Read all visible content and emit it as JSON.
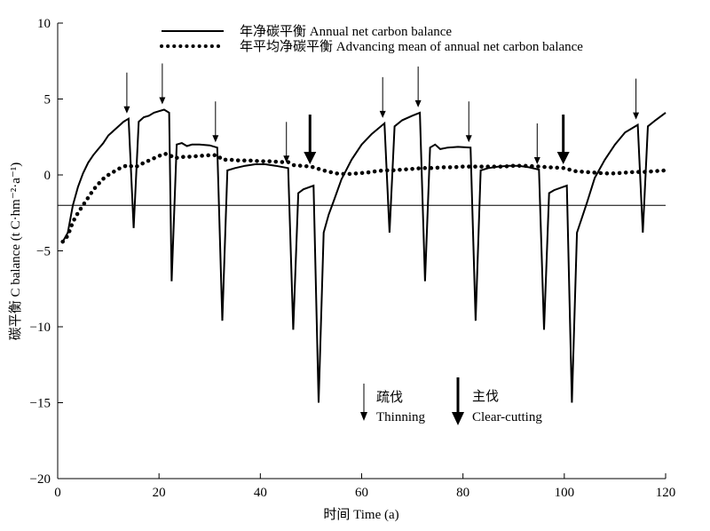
{
  "chart_data": {
    "type": "line",
    "xlabel": "时间 Time (a)",
    "ylabel": "碳平衡 C balance (t C·hm⁻²·a⁻¹)",
    "xlim": [
      0,
      120
    ],
    "ylim": [
      -20,
      10
    ],
    "x_ticks": [
      0,
      20,
      40,
      60,
      80,
      100,
      120
    ],
    "y_ticks": [
      10,
      5,
      0,
      -5,
      -10,
      -15,
      -20
    ],
    "grid": false,
    "reference_line": -2,
    "legend": {
      "position": "top",
      "entries": [
        "年净碳平衡 Annual net carbon balance",
        "年平均净碳平衡 Advancing mean of annual net carbon balance"
      ]
    },
    "annotations": {
      "thinning": {
        "zh": "疏伐",
        "en": "Thinning"
      },
      "clear_cutting": {
        "zh": "主伐",
        "en": "Clear-cutting"
      }
    },
    "thinning_years": [
      14,
      21,
      31.5,
      45.5,
      64.5,
      71.5,
      81.5,
      95,
      114.5
    ],
    "clear_cutting_years": [
      50.5,
      100.5
    ],
    "series": [
      {
        "name": "年净碳平衡 Annual net carbon balance",
        "style": "solid",
        "points": [
          [
            1,
            -4.4
          ],
          [
            2,
            -3.8
          ],
          [
            3,
            -2
          ],
          [
            4,
            -0.8
          ],
          [
            5,
            0.1
          ],
          [
            6,
            0.8
          ],
          [
            7,
            1.3
          ],
          [
            8,
            1.7
          ],
          [
            9,
            2.1
          ],
          [
            10,
            2.6
          ],
          [
            11,
            2.9
          ],
          [
            12,
            3.2
          ],
          [
            13,
            3.5
          ],
          [
            14,
            3.7
          ],
          [
            15,
            -3.5
          ],
          [
            16,
            3.5
          ],
          [
            17,
            3.8
          ],
          [
            18,
            3.9
          ],
          [
            19,
            4.1
          ],
          [
            20,
            4.2
          ],
          [
            21,
            4.3
          ],
          [
            22,
            4.1
          ],
          [
            22.5,
            -7
          ],
          [
            23.5,
            2
          ],
          [
            24.5,
            2.1
          ],
          [
            25.5,
            1.9
          ],
          [
            26.5,
            2
          ],
          [
            28,
            2
          ],
          [
            30,
            1.95
          ],
          [
            31.5,
            1.8
          ],
          [
            32.5,
            -9.6
          ],
          [
            33.5,
            0.3
          ],
          [
            35,
            0.45
          ],
          [
            37,
            0.6
          ],
          [
            39,
            0.7
          ],
          [
            41,
            0.7
          ],
          [
            43,
            0.6
          ],
          [
            45.5,
            0.45
          ],
          [
            46.5,
            -10.2
          ],
          [
            47.5,
            -1.2
          ],
          [
            48.5,
            -0.95
          ],
          [
            50.5,
            -0.7
          ],
          [
            51.5,
            -15
          ],
          [
            52.5,
            -3.8
          ],
          [
            53.5,
            -2.6
          ],
          [
            54.5,
            -1.7
          ],
          [
            56,
            -0.3
          ],
          [
            58,
            1
          ],
          [
            60,
            2
          ],
          [
            62,
            2.7
          ],
          [
            64.5,
            3.4
          ],
          [
            65.5,
            -3.8
          ],
          [
            66.5,
            3.2
          ],
          [
            68,
            3.6
          ],
          [
            70,
            3.9
          ],
          [
            71.5,
            4.1
          ],
          [
            72.5,
            -7
          ],
          [
            73.5,
            1.8
          ],
          [
            74.5,
            2
          ],
          [
            75.5,
            1.7
          ],
          [
            77,
            1.8
          ],
          [
            79,
            1.85
          ],
          [
            81.5,
            1.8
          ],
          [
            82.5,
            -9.6
          ],
          [
            83.5,
            0.3
          ],
          [
            85,
            0.45
          ],
          [
            87,
            0.55
          ],
          [
            89,
            0.6
          ],
          [
            91,
            0.6
          ],
          [
            93,
            0.5
          ],
          [
            95,
            0.35
          ],
          [
            96,
            -10.2
          ],
          [
            97,
            -1.2
          ],
          [
            98,
            -1
          ],
          [
            100.5,
            -0.7
          ],
          [
            101.5,
            -15
          ],
          [
            102.5,
            -3.8
          ],
          [
            103.5,
            -2.8
          ],
          [
            104.5,
            -1.8
          ],
          [
            106,
            -0.2
          ],
          [
            108,
            1
          ],
          [
            110,
            2
          ],
          [
            112,
            2.8
          ],
          [
            114.5,
            3.3
          ],
          [
            115.5,
            -3.8
          ],
          [
            116.5,
            3.2
          ],
          [
            118,
            3.6
          ],
          [
            120,
            4.1
          ]
        ]
      },
      {
        "name": "年平均净碳平衡 Advancing mean of annual net carbon balance",
        "style": "dotted",
        "points": [
          [
            1,
            -4.4
          ],
          [
            2,
            -4
          ],
          [
            3,
            -3.1
          ],
          [
            4,
            -2.5
          ],
          [
            5,
            -2
          ],
          [
            6,
            -1.5
          ],
          [
            7,
            -1
          ],
          [
            8,
            -0.6
          ],
          [
            9,
            -0.25
          ],
          [
            10,
            0
          ],
          [
            11,
            0.2
          ],
          [
            12,
            0.4
          ],
          [
            13,
            0.55
          ],
          [
            14,
            0.65
          ],
          [
            15,
            0.5
          ],
          [
            16,
            0.6
          ],
          [
            17,
            0.8
          ],
          [
            18,
            0.95
          ],
          [
            19,
            1.1
          ],
          [
            20,
            1.25
          ],
          [
            21,
            1.4
          ],
          [
            22,
            1.35
          ],
          [
            23,
            1.1
          ],
          [
            24,
            1.15
          ],
          [
            25,
            1.2
          ],
          [
            26,
            1.2
          ],
          [
            28,
            1.25
          ],
          [
            30,
            1.3
          ],
          [
            31.5,
            1.3
          ],
          [
            32.5,
            1.0
          ],
          [
            34,
            1.0
          ],
          [
            36,
            0.95
          ],
          [
            38,
            0.95
          ],
          [
            40,
            0.9
          ],
          [
            42,
            0.9
          ],
          [
            44,
            0.85
          ],
          [
            45.5,
            0.85
          ],
          [
            46.5,
            0.65
          ],
          [
            48,
            0.6
          ],
          [
            50,
            0.55
          ],
          [
            51.5,
            0.4
          ],
          [
            53,
            0.25
          ],
          [
            55,
            0.1
          ],
          [
            57,
            0.05
          ],
          [
            59,
            0.1
          ],
          [
            61,
            0.15
          ],
          [
            63,
            0.25
          ],
          [
            64.5,
            0.3
          ],
          [
            66,
            0.3
          ],
          [
            68,
            0.35
          ],
          [
            70,
            0.4
          ],
          [
            72,
            0.45
          ],
          [
            74,
            0.45
          ],
          [
            76,
            0.5
          ],
          [
            78,
            0.5
          ],
          [
            80,
            0.55
          ],
          [
            82,
            0.55
          ],
          [
            84,
            0.55
          ],
          [
            86,
            0.55
          ],
          [
            88,
            0.55
          ],
          [
            90,
            0.6
          ],
          [
            92,
            0.6
          ],
          [
            95,
            0.55
          ],
          [
            97,
            0.5
          ],
          [
            100,
            0.45
          ],
          [
            102,
            0.25
          ],
          [
            104,
            0.2
          ],
          [
            106,
            0.15
          ],
          [
            108,
            0.1
          ],
          [
            110,
            0.1
          ],
          [
            112,
            0.15
          ],
          [
            114,
            0.2
          ],
          [
            116,
            0.2
          ],
          [
            118,
            0.25
          ],
          [
            120,
            0.3
          ]
        ]
      }
    ]
  }
}
